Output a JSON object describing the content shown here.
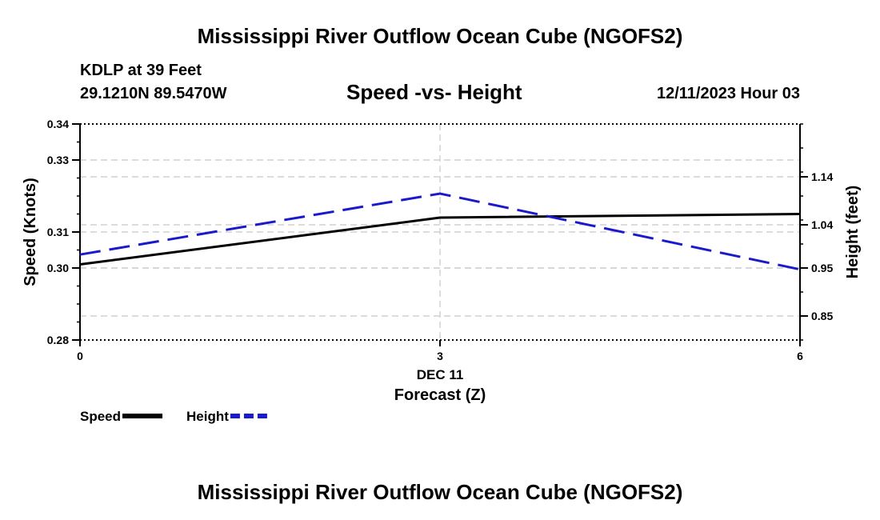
{
  "header": {
    "title_top": "Mississippi River Outflow Ocean Cube (NGOFS2)",
    "station": "KDLP at 39 Feet",
    "coords": "29.1210N  89.5470W",
    "chart_title": "Speed -vs- Height",
    "datetime": "12/11/2023 Hour 03",
    "title_bottom": "Mississippi River Outflow Ocean Cube (NGOFS2)"
  },
  "colors": {
    "speed": "#000000",
    "height": "#1a1acc",
    "grid": "#c8c8c8"
  },
  "chart_data": {
    "type": "line",
    "title": "Speed -vs- Height",
    "xlabel": "Forecast (Z)",
    "x_sub_label": "DEC 11",
    "x": [
      0,
      3,
      6
    ],
    "xlim": [
      0,
      6
    ],
    "x_ticks": [
      0,
      3,
      6
    ],
    "y_left": {
      "label": "Speed (Knots)",
      "lim": [
        0.28,
        0.34
      ],
      "ticks": [
        0.28,
        0.3,
        0.31,
        0.33,
        0.34
      ],
      "tick_labels": [
        "0.28",
        "0.30",
        "0.31",
        "0.33",
        "0.34"
      ]
    },
    "y_right": {
      "label": "Height (feet)",
      "lim": [
        0.8,
        1.25
      ],
      "ticks": [
        0.85,
        0.95,
        1.04,
        1.14
      ],
      "tick_labels": [
        "0.85",
        "0.95",
        "1.04",
        "1.14"
      ]
    },
    "series": [
      {
        "name": "Speed",
        "axis": "left",
        "style": "solid",
        "values": [
          0.301,
          0.314,
          0.315
        ]
      },
      {
        "name": "Height",
        "axis": "right",
        "style": "dashed",
        "values": [
          0.978,
          1.105,
          0.947
        ]
      }
    ],
    "legend": "bottom-left",
    "grid": true
  }
}
